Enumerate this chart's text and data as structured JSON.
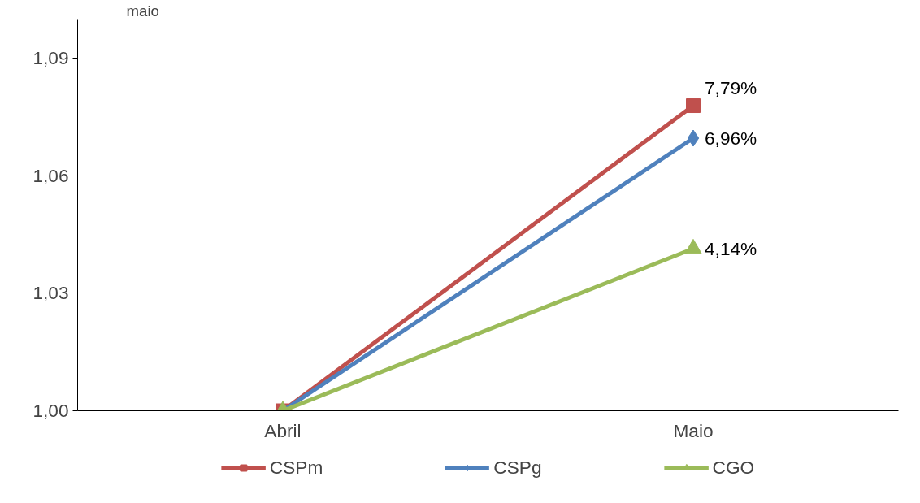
{
  "chart_data": {
    "type": "line",
    "title": "maio",
    "categories": [
      "Abril",
      "Maio"
    ],
    "series": [
      {
        "name": "CSPm",
        "color": "#c0504d",
        "marker": "square",
        "values": [
          1.0,
          1.0779
        ]
      },
      {
        "name": "CSPg",
        "color": "#4f81bd",
        "marker": "diamond",
        "values": [
          1.0,
          1.0696
        ]
      },
      {
        "name": "CGO",
        "color": "#9bbb59",
        "marker": "triangle",
        "values": [
          1.0,
          1.0414
        ]
      }
    ],
    "annotations": [
      {
        "text": "7,79%",
        "x": "Maio",
        "y": 1.0779
      },
      {
        "text": "6,96%",
        "x": "Maio",
        "y": 1.0696
      },
      {
        "text": "4,14%",
        "x": "Maio",
        "y": 1.0414
      }
    ],
    "ylim": [
      1.0,
      1.1
    ],
    "yticks": [
      {
        "value": 1.0,
        "label": "1,00"
      },
      {
        "value": 1.03,
        "label": "1,03"
      },
      {
        "value": 1.06,
        "label": "1,06"
      },
      {
        "value": 1.09,
        "label": "1,09"
      }
    ],
    "grid": false,
    "legend": "bottom",
    "line_style": "solid"
  }
}
